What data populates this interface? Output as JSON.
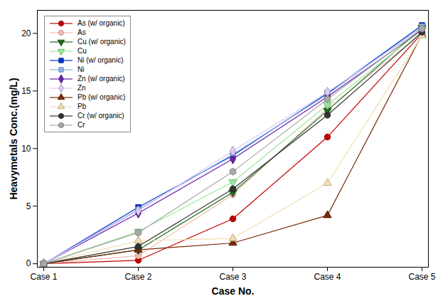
{
  "chart_data": {
    "type": "line",
    "x_label": "Case No.",
    "y_label": "Heavymetals Conc.(mg/L)",
    "categories": [
      "Case 1",
      "Case 2",
      "Case 3",
      "Case 4",
      "Case 5"
    ],
    "ylim": [
      -0.3,
      22
    ],
    "yticks": [
      0,
      5,
      10,
      15,
      20
    ],
    "grid": false,
    "legend": "upper left",
    "series": [
      {
        "name": "As (w/ organic)",
        "color": "#c00000",
        "marker": "circle",
        "line_style": "solid",
        "values": [
          0,
          0.3,
          3.9,
          11.0,
          20.0
        ]
      },
      {
        "name": "As",
        "color": "#f4bcb2",
        "marker": "circle",
        "line_style": "solid",
        "values": [
          0,
          0.7,
          6.0,
          13.5,
          20.0
        ]
      },
      {
        "name": "Cu (w/ organic)",
        "color": "#1f6b1f",
        "marker": "triangle-down",
        "line_style": "solid",
        "values": [
          0,
          1.2,
          6.2,
          13.3,
          20.5
        ]
      },
      {
        "name": "Cu",
        "color": "#98e898",
        "marker": "triangle-down",
        "line_style": "solid",
        "values": [
          0,
          2.8,
          7.1,
          13.8,
          20.3
        ]
      },
      {
        "name": "Ni (w/ organic)",
        "color": "#0033cc",
        "marker": "square",
        "line_style": "solid",
        "values": [
          0,
          4.9,
          9.4,
          14.8,
          20.7
        ]
      },
      {
        "name": "Ni",
        "color": "#8fb0ea",
        "marker": "square",
        "line_style": "solid",
        "values": [
          0,
          4.7,
          9.5,
          14.7,
          20.6
        ]
      },
      {
        "name": "Zn (w/ organic)",
        "color": "#6a1fa8",
        "marker": "diamond",
        "line_style": "solid",
        "values": [
          0,
          4.4,
          9.1,
          14.5,
          20.3
        ]
      },
      {
        "name": "Zn",
        "color": "#dccbf2",
        "marker": "diamond",
        "line_style": "solid",
        "values": [
          0,
          4.6,
          9.8,
          14.9,
          20.4
        ]
      },
      {
        "name": "Pb (w/ organic)",
        "color": "#7a2a0a",
        "marker": "triangle",
        "line_style": "solid",
        "values": [
          0,
          1.2,
          1.8,
          4.2,
          19.9
        ]
      },
      {
        "name": "Pb",
        "color": "#f2deb2",
        "marker": "triangle",
        "line_style": "solid",
        "values": [
          0,
          2.0,
          2.2,
          7.0,
          19.8
        ]
      },
      {
        "name": "Cr (w/ organic)",
        "color": "#333333",
        "marker": "circle",
        "line_style": "solid",
        "values": [
          0,
          1.5,
          6.5,
          12.9,
          20.1
        ]
      },
      {
        "name": "Cr",
        "color": "#a8a8a8",
        "marker": "hexagon",
        "line_style": "solid",
        "values": [
          0,
          2.7,
          8.0,
          14.3,
          20.4
        ]
      }
    ]
  }
}
